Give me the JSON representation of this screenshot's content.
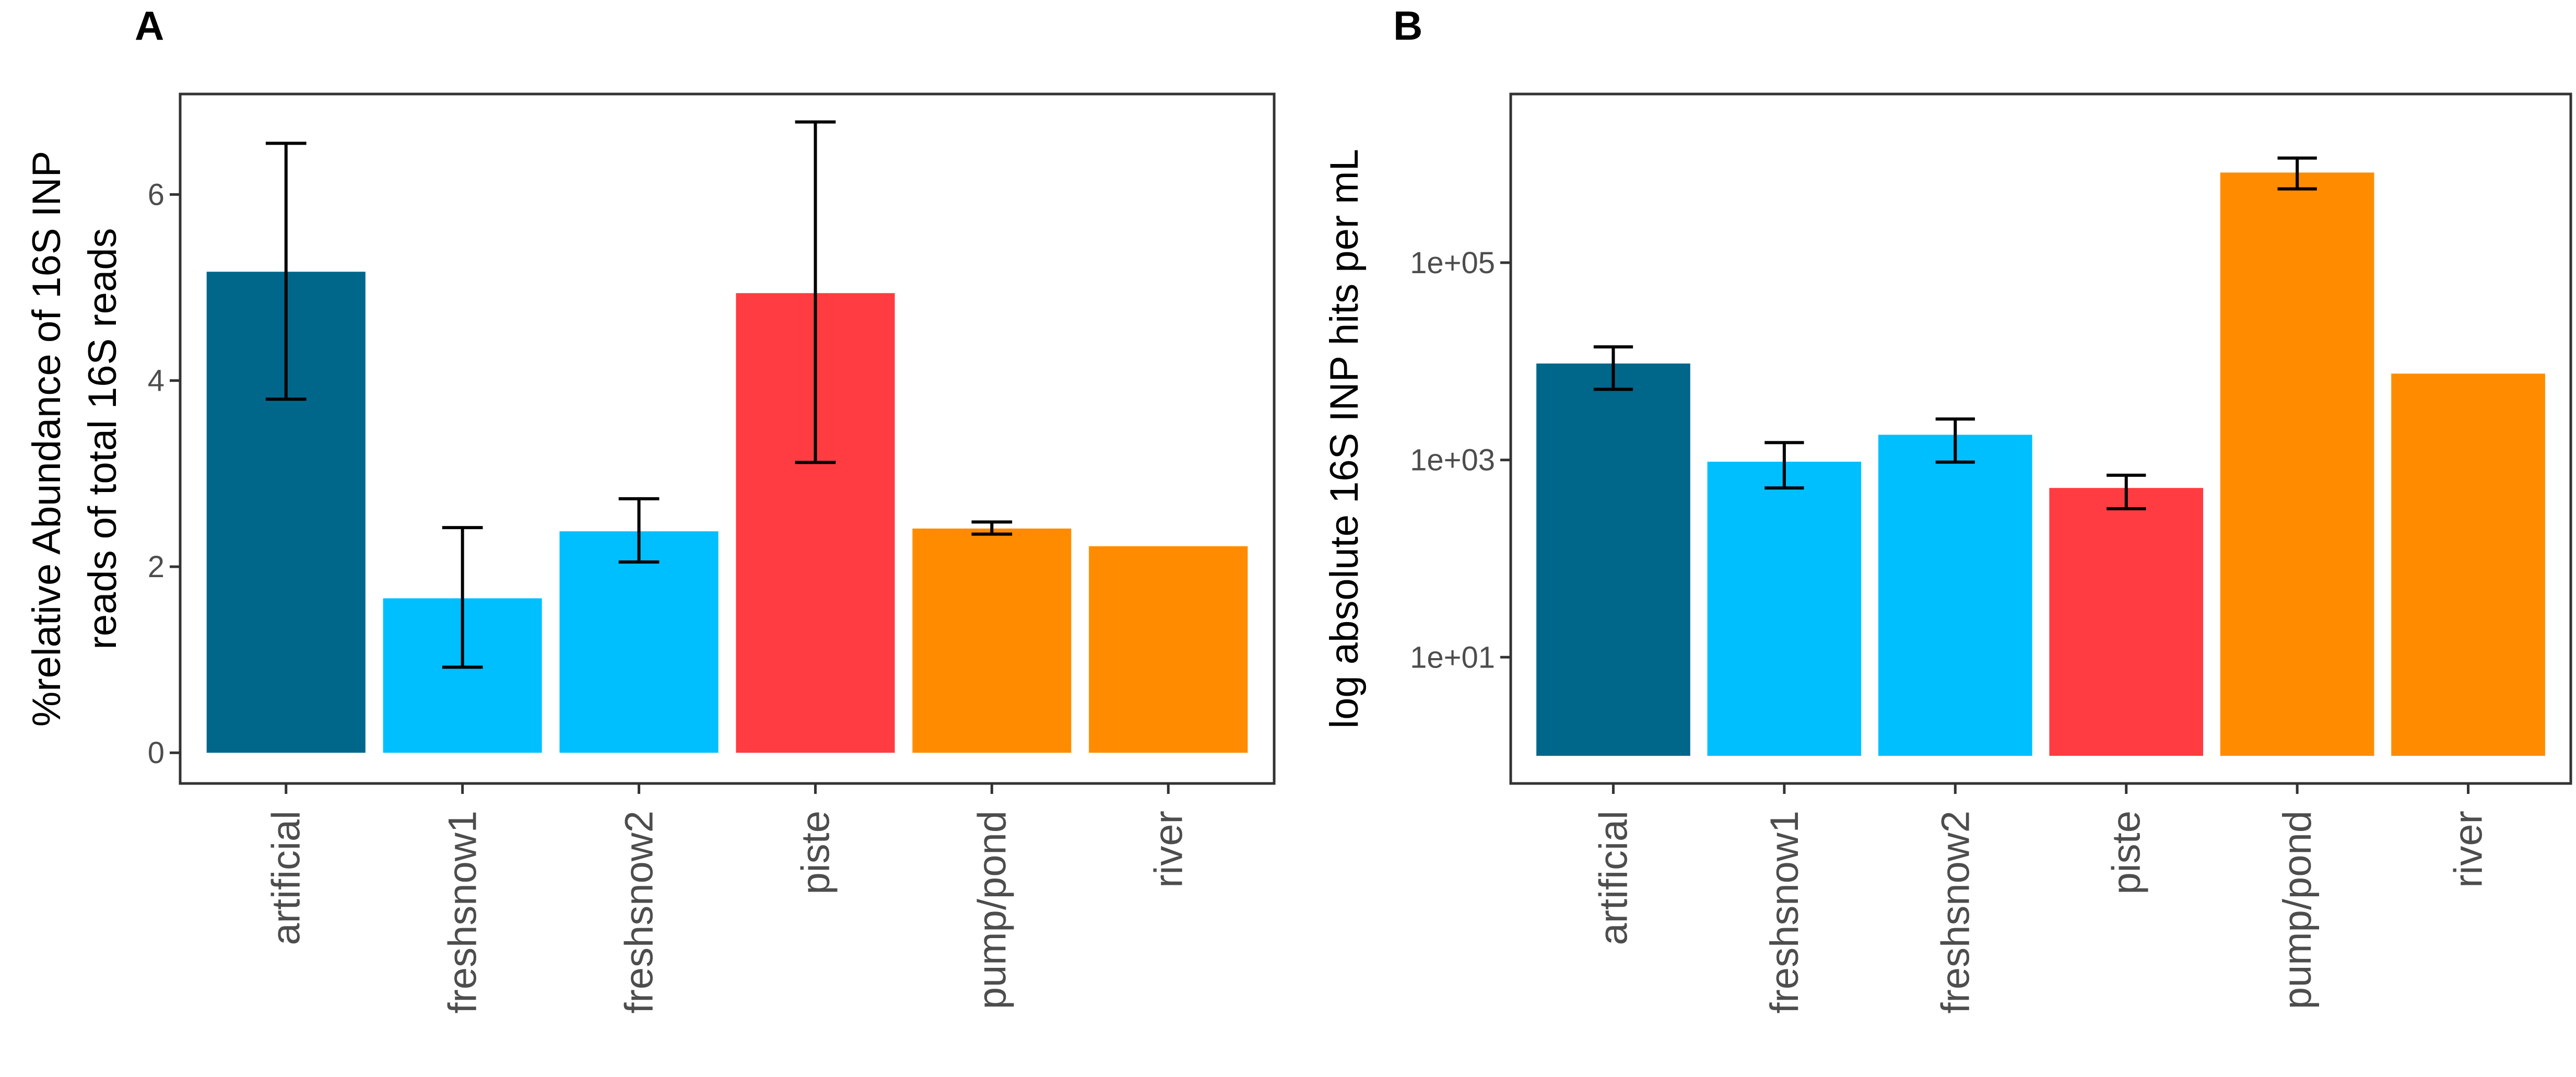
{
  "chart_data": [
    {
      "panel": "A",
      "type": "bar",
      "ylabel_lines": [
        "%relative Abundance of 16S INP",
        "reads of total 16S reads"
      ],
      "xlabel": "",
      "categories": [
        "artificial",
        "freshsnow1",
        "freshsnow2",
        "piste",
        "pump/pond",
        "river"
      ],
      "values": [
        5.17,
        1.66,
        2.38,
        4.94,
        2.41,
        2.22
      ],
      "error_low": [
        3.8,
        0.92,
        2.05,
        3.12,
        2.35,
        null
      ],
      "error_high": [
        6.55,
        2.42,
        2.73,
        6.78,
        2.48,
        null
      ],
      "colors": [
        "#00678a",
        "#00bfff",
        "#00bfff",
        "#ff3c41",
        "#ff8c00",
        "#ff8c00"
      ],
      "scale": "linear",
      "ylim": [
        -0.33,
        7.08
      ],
      "yticks": [
        0,
        2,
        4,
        6
      ],
      "ytick_labels": [
        "0",
        "2",
        "4",
        "6"
      ],
      "grid": false
    },
    {
      "panel": "B",
      "type": "bar",
      "ylabel": "log absolute 16S INP hits  per mL",
      "xlabel": "",
      "categories": [
        "artificial",
        "freshsnow1",
        "freshsnow2",
        "piste",
        "pump/pond",
        "river"
      ],
      "values": [
        9500,
        960,
        1800,
        520,
        820000,
        7500
      ],
      "error_low": [
        5200,
        520,
        950,
        320,
        560000,
        null
      ],
      "error_high": [
        14000,
        1500,
        2600,
        700,
        1150000,
        null
      ],
      "colors": [
        "#00678a",
        "#00bfff",
        "#00bfff",
        "#ff3c41",
        "#ff8c00",
        "#ff8c00"
      ],
      "scale": "log10",
      "baseline": 1,
      "ylim_log10": [
        -0.28,
        6.71
      ],
      "yticks": [
        10,
        1000,
        100000
      ],
      "ytick_labels": [
        "1e+01",
        "1e+03",
        "1e+05"
      ],
      "grid": false
    }
  ]
}
